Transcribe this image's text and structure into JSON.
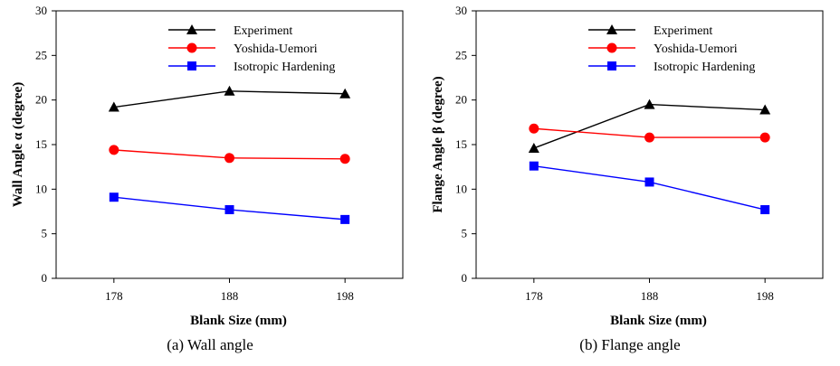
{
  "chart_data": [
    {
      "type": "line",
      "caption": "(a) Wall angle",
      "xlabel": "Blank Size (mm)",
      "ylabel": "Wall Angle α (degree)",
      "x": [
        178,
        188,
        198
      ],
      "xlim": [
        173,
        203
      ],
      "ylim": [
        0,
        30
      ],
      "yticks": [
        0,
        5,
        10,
        15,
        20,
        25,
        30
      ],
      "grid": false,
      "legend_position": "top-right",
      "series": [
        {
          "name": "Experiment",
          "values": [
            19.2,
            21.0,
            20.7
          ],
          "color": "#000000",
          "marker": "triangle"
        },
        {
          "name": "Yoshida-Uemori",
          "values": [
            14.4,
            13.5,
            13.4
          ],
          "color": "#ff0000",
          "marker": "circle"
        },
        {
          "name": "Isotropic Hardening",
          "values": [
            9.1,
            7.7,
            6.6
          ],
          "color": "#0000ff",
          "marker": "square"
        }
      ]
    },
    {
      "type": "line",
      "caption": "(b) Flange angle",
      "xlabel": "Blank Size (mm)",
      "ylabel": "Flange Angle β (degree)",
      "x": [
        178,
        188,
        198
      ],
      "xlim": [
        173,
        203
      ],
      "ylim": [
        0,
        30
      ],
      "yticks": [
        0,
        5,
        10,
        15,
        20,
        25,
        30
      ],
      "grid": false,
      "legend_position": "top-right",
      "series": [
        {
          "name": "Experiment",
          "values": [
            14.6,
            19.5,
            18.9
          ],
          "color": "#000000",
          "marker": "triangle"
        },
        {
          "name": "Yoshida-Uemori",
          "values": [
            16.8,
            15.8,
            15.8
          ],
          "color": "#ff0000",
          "marker": "circle"
        },
        {
          "name": "Isotropic Hardening",
          "values": [
            12.6,
            10.8,
            7.7
          ],
          "color": "#0000ff",
          "marker": "square"
        }
      ]
    }
  ]
}
